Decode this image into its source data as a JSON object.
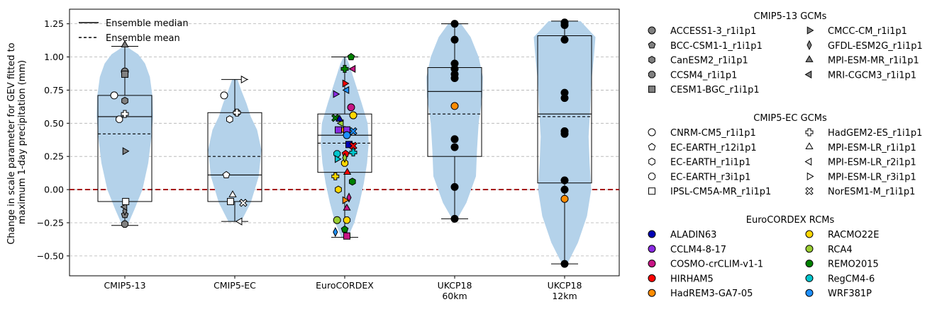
{
  "chart_data": {
    "type": "box-violin-strip",
    "ylabel_line1": "Change in scale parameter for GEV fitted to",
    "ylabel_line2": "maximum 1-day precipitation (mm)",
    "ylim": [
      -0.65,
      1.36
    ],
    "yticks": [
      -0.5,
      -0.25,
      0.0,
      0.25,
      0.5,
      0.75,
      1.0,
      1.25
    ],
    "ytick_labels": [
      "−0.50",
      "−0.25",
      "0.00",
      "0.25",
      "0.50",
      "0.75",
      "1.00",
      "1.25"
    ],
    "grid": "horizontal dashed",
    "zero_line": {
      "y": 0,
      "color": "#a00000",
      "style": "dashed"
    },
    "inner_legend": {
      "placement": "top-left",
      "median": "Ensemble median",
      "mean": "Ensemble mean"
    },
    "groups": [
      {
        "label_lines": [
          "CMIP5-13"
        ],
        "median": 0.55,
        "mean": 0.42,
        "q1": -0.09,
        "q3": 0.71,
        "whisker_low": -0.27,
        "whisker_high": 1.08,
        "violin": [
          [
            -0.27,
            0.05
          ],
          [
            -0.15,
            0.18
          ],
          [
            0.0,
            0.33
          ],
          [
            0.2,
            0.44
          ],
          [
            0.4,
            0.5
          ],
          [
            0.55,
            0.53
          ],
          [
            0.7,
            0.52
          ],
          [
            0.85,
            0.47
          ],
          [
            0.95,
            0.38
          ],
          [
            1.02,
            0.25
          ],
          [
            1.07,
            0.06
          ]
        ],
        "points": [
          {
            "model": "ACCESS1-3_r1i1p1",
            "v": 0.89,
            "dx": 0
          },
          {
            "model": "BCC-CSM1-1_r1i1p1",
            "v": -0.19,
            "dx": 0
          },
          {
            "model": "CanESM2_r1i1p1",
            "v": 0.67,
            "dx": 0
          },
          {
            "model": "CCSM4_r1i1p1",
            "v": -0.26,
            "dx": 0
          },
          {
            "model": "CESM1-BGC_r1i1p1",
            "v": 0.87,
            "dx": 0
          },
          {
            "model": "CMCC-CM_r1i1p1",
            "v": 0.29,
            "dx": 0
          },
          {
            "model": "GFDL-ESM2G_r1i1p1",
            "v": -0.16,
            "dx": 0
          },
          {
            "model": "MPI-ESM-MR_r1i1p1",
            "v": 1.09,
            "dx": 0
          },
          {
            "model": "MRI-CGCM3_r1i1p1",
            "v": -0.13,
            "dx": 0
          },
          {
            "model": "CNRM-CM5_r1i1p1",
            "v": 0.71,
            "dx": -0.25
          },
          {
            "model": "EC-EARTH_r3i1p1",
            "v": 0.53,
            "dx": -0.13
          },
          {
            "model": "HadGEM2-ES_r1i1p1",
            "v": 0.57,
            "dx": 0
          },
          {
            "model": "IPSL-CM5A-MR_r1i1p1",
            "v": -0.09,
            "dx": 0.02
          }
        ]
      },
      {
        "label_lines": [
          "CMIP5-EC"
        ],
        "median": 0.11,
        "mean": 0.25,
        "q1": -0.09,
        "q3": 0.58,
        "whisker_low": -0.24,
        "whisker_high": 0.83,
        "violin": [
          [
            -0.24,
            0.12
          ],
          [
            -0.1,
            0.3
          ],
          [
            0.1,
            0.45
          ],
          [
            0.3,
            0.5
          ],
          [
            0.45,
            0.42
          ],
          [
            0.55,
            0.3
          ],
          [
            0.65,
            0.22
          ],
          [
            0.75,
            0.12
          ],
          [
            0.83,
            0.05
          ]
        ],
        "points": [
          {
            "model": "CNRM-CM5_r1i1p1",
            "v": 0.71,
            "dx": -0.25
          },
          {
            "model": "EC-EARTH_r12i1p1",
            "v": 0.11,
            "dx": -0.2
          },
          {
            "model": "EC-EARTH_r1i1p1",
            "v": 0.53,
            "dx": -0.12
          },
          {
            "model": "EC-EARTH_r3i1p1",
            "v": 0.58,
            "dx": 0.05
          },
          {
            "model": "IPSL-CM5A-MR_r1i1p1",
            "v": -0.09,
            "dx": -0.1
          },
          {
            "model": "HadGEM2-ES_r1i1p1",
            "v": 0.58,
            "dx": 0.05
          },
          {
            "model": "MPI-ESM-LR_r1i1p1",
            "v": -0.04,
            "dx": -0.05
          },
          {
            "model": "MPI-ESM-LR_r2i1p1",
            "v": -0.24,
            "dx": 0.12
          },
          {
            "model": "MPI-ESM-LR_r3i1p1",
            "v": 0.83,
            "dx": 0.2
          },
          {
            "model": "NorESM1-M_r1i1p1",
            "v": -0.1,
            "dx": 0.2
          }
        ]
      },
      {
        "label_lines": [
          "EuroCORDEX"
        ],
        "median": 0.41,
        "mean": 0.35,
        "q1": 0.13,
        "q3": 0.57,
        "whisker_low": -0.36,
        "whisker_high": 1.0,
        "violin": [
          [
            -0.36,
            0.06
          ],
          [
            -0.25,
            0.18
          ],
          [
            -0.1,
            0.28
          ],
          [
            0.05,
            0.36
          ],
          [
            0.2,
            0.42
          ],
          [
            0.35,
            0.45
          ],
          [
            0.5,
            0.43
          ],
          [
            0.65,
            0.32
          ],
          [
            0.8,
            0.2
          ],
          [
            0.95,
            0.08
          ],
          [
            1.0,
            0.02
          ]
        ],
        "points": [
          {
            "model": "ALADIN63",
            "v": 0.34,
            "dx": 0.1
          },
          {
            "model": "CCLM4-8-17",
            "v": 0.72,
            "dx": -0.22
          },
          {
            "model": "COSMO-crCLIM-v1-1",
            "v": 0.62,
            "dx": 0.15
          },
          {
            "model": "HIRHAM5",
            "v": 0.27,
            "dx": 0.02
          },
          {
            "model": "HadREM3-GA7-05",
            "v": 0.45,
            "dx": 0.0
          },
          {
            "model": "RACMO22E",
            "v": 0.1,
            "dx": -0.22
          },
          {
            "model": "RCA4",
            "v": 0.5,
            "dx": -0.08
          },
          {
            "model": "REMO2015",
            "v": 0.54,
            "dx": -0.22
          },
          {
            "model": "RegCM4-6",
            "v": 0.27,
            "dx": -0.18
          },
          {
            "model": "WRF381P",
            "v": -0.32,
            "dx": -0.22
          },
          {
            "model": "ALADIN63",
            "v": 0.53,
            "dx": -0.12
          },
          {
            "model": "CCLM4-8-17",
            "v": 0.45,
            "dx": 0.05
          },
          {
            "model": "HIRHAM5",
            "v": 0.8,
            "dx": 0.0
          },
          {
            "model": "RACMO22E",
            "v": 0.56,
            "dx": 0.2
          },
          {
            "model": "REMO2015",
            "v": 1.0,
            "dx": 0.15
          },
          {
            "model": "REMO2015",
            "v": 0.06,
            "dx": 0.18
          },
          {
            "model": "RegCM4-6",
            "v": 0.28,
            "dx": 0.2
          },
          {
            "model": "WRF381P",
            "v": 0.75,
            "dx": 0.05
          },
          {
            "model": "HIRHAM5",
            "v": 0.33,
            "dx": 0.2
          },
          {
            "model": "RACMO22E",
            "v": -0.23,
            "dx": 0.05
          },
          {
            "model": "COSMO-crCLIM-v1-1",
            "v": -0.06,
            "dx": 0.1
          },
          {
            "model": "COSMO-crCLIM-v1-1",
            "v": -0.14,
            "dx": 0.05
          },
          {
            "model": "COSMO-crCLIM-v1-1",
            "v": -0.35,
            "dx": 0.05
          },
          {
            "model": "HadREM3-GA7-05",
            "v": -0.08,
            "dx": 0.0
          },
          {
            "model": "RCA4",
            "v": -0.23,
            "dx": -0.18
          },
          {
            "model": "REMO2015",
            "v": -0.3,
            "dx": 0.0
          },
          {
            "model": "RACMO22E",
            "v": 0.0,
            "dx": -0.15
          },
          {
            "model": "REMO2015",
            "v": 0.91,
            "dx": 0.0
          },
          {
            "model": "COSMO-crCLIM-v1-1",
            "v": 0.91,
            "dx": 0.2
          },
          {
            "model": "WRF381P",
            "v": 0.44,
            "dx": 0.2
          },
          {
            "model": "RACMO22E",
            "v": 0.2,
            "dx": 0.0
          },
          {
            "model": "RCA4",
            "v": 0.24,
            "dx": 0.0
          },
          {
            "model": "HIRHAM5",
            "v": 0.13,
            "dx": 0.06
          },
          {
            "model": "CCLM4-8-17",
            "v": 0.45,
            "dx": -0.15
          },
          {
            "model": "RegCM4-6",
            "v": 0.23,
            "dx": -0.18
          },
          {
            "model": "WRF381P",
            "v": 0.41,
            "dx": 0.05
          }
        ]
      },
      {
        "label_lines": [
          "UKCP18",
          "60km"
        ],
        "median": 0.74,
        "mean": 0.57,
        "q1": 0.25,
        "q3": 0.92,
        "whisker_low": -0.22,
        "whisker_high": 1.25,
        "violin": [
          [
            -0.22,
            0.05
          ],
          [
            -0.1,
            0.22
          ],
          [
            0.1,
            0.4
          ],
          [
            0.3,
            0.42
          ],
          [
            0.5,
            0.45
          ],
          [
            0.7,
            0.52
          ],
          [
            0.85,
            0.53
          ],
          [
            1.0,
            0.45
          ],
          [
            1.15,
            0.3
          ],
          [
            1.25,
            0.12
          ]
        ],
        "points": [
          {
            "model": "UKCP18",
            "v": 1.25,
            "dx": 0
          },
          {
            "model": "UKCP18",
            "v": 1.13,
            "dx": 0
          },
          {
            "model": "UKCP18",
            "v": 0.95,
            "dx": 0
          },
          {
            "model": "UKCP18",
            "v": 0.91,
            "dx": 0
          },
          {
            "model": "UKCP18",
            "v": 0.87,
            "dx": 0
          },
          {
            "model": "UKCP18",
            "v": 0.84,
            "dx": 0
          },
          {
            "model": "HadREM3-GA7-05",
            "v": 0.63,
            "dx": 0
          },
          {
            "model": "UKCP18",
            "v": 0.38,
            "dx": 0
          },
          {
            "model": "UKCP18",
            "v": 0.32,
            "dx": 0
          },
          {
            "model": "UKCP18",
            "v": 0.02,
            "dx": 0
          },
          {
            "model": "UKCP18",
            "v": -0.22,
            "dx": 0
          }
        ]
      },
      {
        "label_lines": [
          "UKCP18",
          "12km"
        ],
        "median": 0.57,
        "mean": 0.55,
        "q1": 0.05,
        "q3": 1.16,
        "whisker_low": -0.56,
        "whisker_high": 1.27,
        "violin": [
          [
            -0.56,
            0.05
          ],
          [
            -0.4,
            0.25
          ],
          [
            -0.2,
            0.42
          ],
          [
            0.0,
            0.5
          ],
          [
            0.2,
            0.47
          ],
          [
            0.4,
            0.45
          ],
          [
            0.6,
            0.48
          ],
          [
            0.8,
            0.5
          ],
          [
            1.0,
            0.55
          ],
          [
            1.15,
            0.58
          ],
          [
            1.27,
            0.3
          ]
        ],
        "points": [
          {
            "model": "UKCP18",
            "v": 1.26,
            "dx": 0
          },
          {
            "model": "UKCP18",
            "v": 1.24,
            "dx": 0
          },
          {
            "model": "UKCP18",
            "v": 1.13,
            "dx": 0
          },
          {
            "model": "UKCP18",
            "v": 0.73,
            "dx": 0
          },
          {
            "model": "UKCP18",
            "v": 0.69,
            "dx": 0
          },
          {
            "model": "UKCP18",
            "v": 0.44,
            "dx": 0
          },
          {
            "model": "UKCP18",
            "v": 0.42,
            "dx": 0
          },
          {
            "model": "UKCP18",
            "v": 0.07,
            "dx": 0
          },
          {
            "model": "UKCP18",
            "v": 0.0,
            "dx": 0
          },
          {
            "model": "HadREM3-GA7-05",
            "v": -0.07,
            "dx": 0
          },
          {
            "model": "UKCP18",
            "v": -0.56,
            "dx": 0
          }
        ]
      }
    ],
    "legend_sections": [
      {
        "title": "CMIP5-13 GCMs",
        "fill": "#808080",
        "items": [
          {
            "label": "ACCESS1-3_r1i1p1",
            "marker": "circle"
          },
          {
            "label": "CMCC-CM_r1i1p1",
            "marker": "tri-right"
          },
          {
            "label": "BCC-CSM1-1_r1i1p1",
            "marker": "pentagon"
          },
          {
            "label": "GFDL-ESM2G_r1i1p1",
            "marker": "thin-diamond"
          },
          {
            "label": "CanESM2_r1i1p1",
            "marker": "hexagon"
          },
          {
            "label": "MPI-ESM-MR_r1i1p1",
            "marker": "tri-up"
          },
          {
            "label": "CCSM4_r1i1p1",
            "marker": "octagon"
          },
          {
            "label": "MRI-CGCM3_r1i1p1",
            "marker": "tri-left"
          },
          {
            "label": "CESM1-BGC_r1i1p1",
            "marker": "square"
          }
        ]
      },
      {
        "title": "CMIP5-EC GCMs",
        "fill": "#ffffff",
        "items": [
          {
            "label": "CNRM-CM5_r1i1p1",
            "marker": "circle"
          },
          {
            "label": "HadGEM2-ES_r1i1p1",
            "marker": "plus"
          },
          {
            "label": "EC-EARTH_r12i1p1",
            "marker": "pentagon"
          },
          {
            "label": "MPI-ESM-LR_r1i1p1",
            "marker": "tri-up"
          },
          {
            "label": "EC-EARTH_r1i1p1",
            "marker": "hexagon"
          },
          {
            "label": "MPI-ESM-LR_r2i1p1",
            "marker": "tri-left"
          },
          {
            "label": "EC-EARTH_r3i1p1",
            "marker": "octagon"
          },
          {
            "label": "MPI-ESM-LR_r3i1p1",
            "marker": "tri-right"
          },
          {
            "label": "IPSL-CM5A-MR_r1i1p1",
            "marker": "square"
          },
          {
            "label": "NorESM1-M_r1i1p1",
            "marker": "x"
          }
        ]
      },
      {
        "title": "EuroCORDEX RCMs",
        "fill": "",
        "items": [
          {
            "label": "ALADIN63",
            "color": "#0000b3"
          },
          {
            "label": "RACMO22E",
            "color": "#ffd700"
          },
          {
            "label": "CCLM4-8-17",
            "color": "#8a2be2"
          },
          {
            "label": "RCA4",
            "color": "#9acd32"
          },
          {
            "label": "COSMO-crCLIM-v1-1",
            "color": "#c71585"
          },
          {
            "label": "REMO2015",
            "color": "#008000"
          },
          {
            "label": "HIRHAM5",
            "color": "#ff0000"
          },
          {
            "label": "RegCM4-6",
            "color": "#00c5cd"
          },
          {
            "label": "HadREM3-GA7-05",
            "color": "#ff8c00"
          },
          {
            "label": "WRF381P",
            "color": "#1e90ff"
          }
        ]
      }
    ],
    "colors": {
      "violin": "#b4d2ea",
      "zero_line": "#a00000",
      "grid": "#b0b0b0",
      "ukcp": "#000000"
    }
  }
}
